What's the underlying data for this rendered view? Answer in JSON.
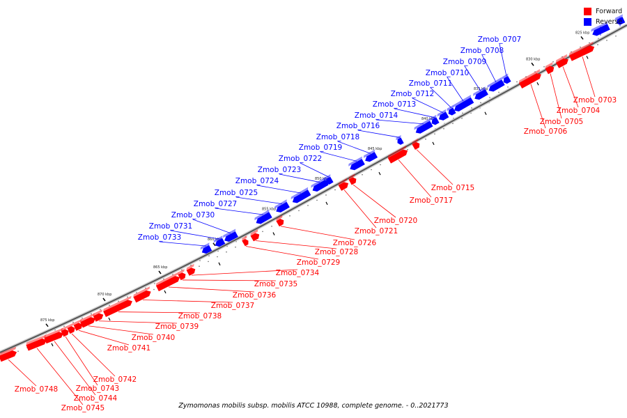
{
  "title": "Zymomonas mobilis subsp. mobilis ATCC 10988, complete genome. - 0..2021773",
  "legend": [
    {
      "label": "Forward",
      "color": "#ff0000"
    },
    {
      "label": "Reverse",
      "color": "#0000ff"
    }
  ],
  "colors": {
    "forward": "#ff0000",
    "reverse": "#0000ff",
    "backbone": "#555555"
  },
  "kbp_ticks": [
    "825 kbp",
    "830 kbp",
    "835 kbp",
    "840 kbp",
    "845 kbp",
    "850 kbp",
    "855 kbp",
    "860 kbp",
    "865 kbp",
    "870 kbp",
    "875 kbp"
  ],
  "forward_genes": [
    "Zmob_0703",
    "Zmob_0704",
    "Zmob_0705",
    "Zmob_0706",
    "Zmob_0715",
    "Zmob_0717",
    "Zmob_0720",
    "Zmob_0721",
    "Zmob_0726",
    "Zmob_0728",
    "Zmob_0729",
    "Zmob_0734",
    "Zmob_0735",
    "Zmob_0736",
    "Zmob_0737",
    "Zmob_0738",
    "Zmob_0739",
    "Zmob_0740",
    "Zmob_0741",
    "Zmob_0742",
    "Zmob_0743",
    "Zmob_0744",
    "Zmob_0745",
    "Zmob_0748"
  ],
  "reverse_genes": [
    "Zmob_0707",
    "Zmob_0708",
    "Zmob_0709",
    "Zmob_0710",
    "Zmob_0711",
    "Zmob_0712",
    "Zmob_0713",
    "Zmob_0714",
    "Zmob_0716",
    "Zmob_0718",
    "Zmob_0719",
    "Zmob_0722",
    "Zmob_0723",
    "Zmob_0724",
    "Zmob_0725",
    "Zmob_0727",
    "Zmob_0730",
    "Zmob_0731",
    "Zmob_0733"
  ]
}
